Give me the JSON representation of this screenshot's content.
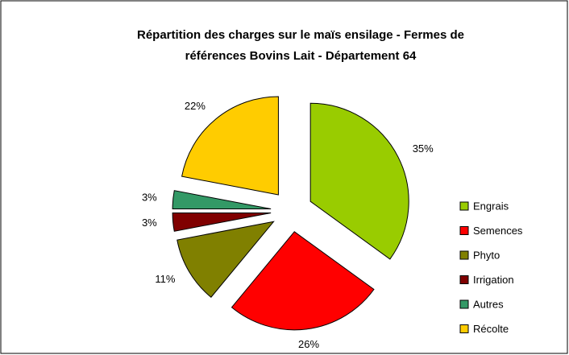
{
  "chart_data": {
    "type": "pie",
    "title": [
      "Répartition des charges sur le maïs ensilage - Fermes de",
      "références Bovins Lait - Département 64"
    ],
    "categories": [
      "Engrais",
      "Semences",
      "Phyto",
      "Irrigation",
      "Autres",
      "Récolte"
    ],
    "values": [
      35,
      26,
      11,
      3,
      3,
      22
    ],
    "value_labels": [
      "35%",
      "26%",
      "11%",
      "3%",
      "3%",
      "22%"
    ],
    "colors": [
      "#99cc00",
      "#ff0000",
      "#808000",
      "#800000",
      "#339966",
      "#ffcc00"
    ],
    "legend": "right"
  }
}
